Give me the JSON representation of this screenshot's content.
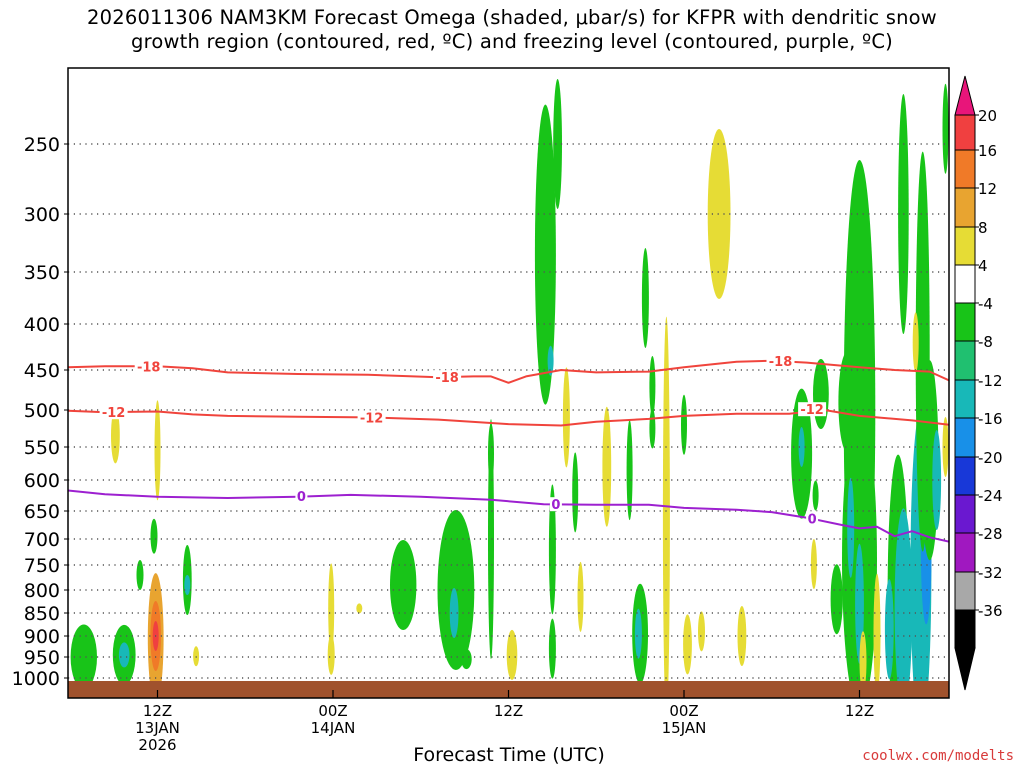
{
  "title": {
    "line1": "2026011306 NAM3KM Forecast Omega (shaded, μbar/s) for KFPR with dendritic snow",
    "line2": "growth region (contoured, red, ºC) and freezing level (contoured, purple, ºC)"
  },
  "credit": "coolwx.com/modelts",
  "chart_data": {
    "type": "heatmap",
    "xlabel": "Forecast Time (UTC)",
    "x_range_hours": [
      6.9,
      57.1
    ],
    "y_range_hPa": [
      1030,
      200
    ],
    "y_ticks": [
      250,
      300,
      350,
      400,
      450,
      500,
      550,
      600,
      650,
      700,
      750,
      800,
      850,
      900,
      950,
      1000
    ],
    "x_ticks": [
      {
        "hour": 12,
        "labels": [
          "12Z",
          "13JAN",
          "2026"
        ]
      },
      {
        "hour": 22,
        "labels": [
          "00Z",
          "14JAN"
        ]
      },
      {
        "hour": 32,
        "labels": [
          "12Z"
        ]
      },
      {
        "hour": 42,
        "labels": [
          "00Z",
          "15JAN"
        ]
      },
      {
        "hour": 52,
        "labels": [
          "12Z"
        ]
      }
    ],
    "colorbar": {
      "labels": [
        "20",
        "16",
        "12",
        "8",
        "4",
        "-4",
        "-8",
        "-12",
        "-16",
        "-20",
        "-24",
        "-28",
        "-32",
        "-36"
      ],
      "bins": [
        {
          "range": "> 20",
          "color": "#e8157a"
        },
        {
          "range": "16 to 20",
          "color": "#f04040"
        },
        {
          "range": "12 to 16",
          "color": "#f07a28"
        },
        {
          "range": "8 to 12",
          "color": "#e8a430"
        },
        {
          "range": "4 to 8",
          "color": "#e6dc35"
        },
        {
          "range": "-4 to 4",
          "color": "#ffffff"
        },
        {
          "range": "-8 to -4",
          "color": "#18c418"
        },
        {
          "range": "-12 to -8",
          "color": "#20c070"
        },
        {
          "range": "-16 to -12",
          "color": "#18b8b8"
        },
        {
          "range": "-20 to -16",
          "color": "#1890e8"
        },
        {
          "range": "-24 to -20",
          "color": "#1838d8"
        },
        {
          "range": "-28 to -24",
          "color": "#6a18d0"
        },
        {
          "range": "-32 to -28",
          "color": "#a018c0"
        },
        {
          "range": "-36 to -32",
          "color": "#a8a8a8"
        },
        {
          "range": "< -36",
          "color": "#000000"
        }
      ]
    },
    "contours": [
      {
        "value": -18,
        "label": "-18",
        "color": "#f0443c",
        "points": [
          [
            6.9,
            447
          ],
          [
            9,
            446
          ],
          [
            12,
            446
          ],
          [
            14,
            448
          ],
          [
            16,
            453
          ],
          [
            20,
            455
          ],
          [
            24,
            456
          ],
          [
            28,
            459
          ],
          [
            30,
            458
          ],
          [
            31,
            458
          ],
          [
            32,
            466
          ],
          [
            33,
            458
          ],
          [
            35,
            450
          ],
          [
            37,
            453
          ],
          [
            40,
            452
          ],
          [
            42,
            447
          ],
          [
            45,
            441
          ],
          [
            47,
            440
          ],
          [
            49,
            442
          ],
          [
            52,
            447
          ],
          [
            54,
            450
          ],
          [
            56,
            452
          ],
          [
            57.1,
            463
          ]
        ],
        "labels_at": [
          [
            11.5,
            446
          ],
          [
            28.5,
            459
          ],
          [
            47.5,
            440
          ]
        ]
      },
      {
        "value": -12,
        "label": "-12",
        "color": "#f0443c",
        "points": [
          [
            6.9,
            501
          ],
          [
            9,
            503
          ],
          [
            12,
            502
          ],
          [
            14,
            506
          ],
          [
            16,
            508
          ],
          [
            20,
            509
          ],
          [
            24,
            510
          ],
          [
            28,
            513
          ],
          [
            32,
            519
          ],
          [
            35,
            521
          ],
          [
            37,
            516
          ],
          [
            40,
            512
          ],
          [
            42,
            508
          ],
          [
            45,
            505
          ],
          [
            48,
            505
          ],
          [
            50,
            500
          ],
          [
            52,
            508
          ],
          [
            55,
            514
          ],
          [
            57.1,
            520
          ]
        ],
        "labels_at": [
          [
            9.5,
            503
          ],
          [
            24.2,
            510
          ],
          [
            49.3,
            499
          ]
        ]
      },
      {
        "value": 0,
        "label": "0",
        "color": "#9d20d0",
        "points": [
          [
            6.9,
            617
          ],
          [
            9,
            623
          ],
          [
            12,
            627
          ],
          [
            16,
            629
          ],
          [
            20,
            627
          ],
          [
            23,
            624
          ],
          [
            27,
            627
          ],
          [
            31,
            632
          ],
          [
            34,
            639
          ],
          [
            37,
            640
          ],
          [
            40,
            640
          ],
          [
            42,
            645
          ],
          [
            45,
            648
          ],
          [
            47,
            652
          ],
          [
            49,
            662
          ],
          [
            51,
            675
          ],
          [
            52,
            681
          ],
          [
            53,
            678
          ],
          [
            54,
            695
          ],
          [
            55,
            686
          ],
          [
            56,
            697
          ],
          [
            57.1,
            705
          ]
        ],
        "labels_at": [
          [
            20.2,
            626
          ],
          [
            34.7,
            639
          ],
          [
            49.3,
            663
          ]
        ]
      }
    ],
    "omega_features": [
      {
        "x": 7.8,
        "p": 950,
        "w": 1.5,
        "h": 65,
        "value": -6
      },
      {
        "x": 10.1,
        "p": 945,
        "w": 1.3,
        "h": 60,
        "value": -7
      },
      {
        "x": 10.1,
        "p": 945,
        "w": 0.6,
        "h": 25,
        "value": -13
      },
      {
        "x": 11.9,
        "p": 905,
        "w": 0.9,
        "h": 130,
        "value": 8
      },
      {
        "x": 11.9,
        "p": 900,
        "w": 0.6,
        "h": 70,
        "value": 13
      },
      {
        "x": 11.9,
        "p": 900,
        "w": 0.3,
        "h": 30,
        "value": 17
      },
      {
        "x": 11.8,
        "p": 695,
        "w": 0.4,
        "h": 35,
        "value": -6
      },
      {
        "x": 11.0,
        "p": 770,
        "w": 0.4,
        "h": 30,
        "value": -6
      },
      {
        "x": 13.7,
        "p": 780,
        "w": 0.5,
        "h": 70,
        "value": -6
      },
      {
        "x": 13.7,
        "p": 790,
        "w": 0.2,
        "h": 20,
        "value": -13
      },
      {
        "x": 9.6,
        "p": 535,
        "w": 0.5,
        "h": 55,
        "value": 5
      },
      {
        "x": 12.0,
        "p": 555,
        "w": 0.2,
        "h": 100,
        "value": 5
      },
      {
        "x": 14.2,
        "p": 948,
        "w": 0.3,
        "h": 20,
        "value": 5
      },
      {
        "x": 21.9,
        "p": 840,
        "w": 0.3,
        "h": 90,
        "value": 5
      },
      {
        "x": 21.9,
        "p": 945,
        "w": 0.4,
        "h": 40,
        "value": 5
      },
      {
        "x": 23.5,
        "p": 840,
        "w": 0.1,
        "h": 10,
        "value": 5
      },
      {
        "x": 26.0,
        "p": 790,
        "w": 1.5,
        "h": 90,
        "value": -6
      },
      {
        "x": 29.0,
        "p": 800,
        "w": 2.1,
        "h": 160,
        "value": -6
      },
      {
        "x": 28.9,
        "p": 850,
        "w": 0.5,
        "h": 50,
        "value": -13
      },
      {
        "x": 31.0,
        "p": 700,
        "w": 0.3,
        "h": 240,
        "value": -6
      },
      {
        "x": 31.0,
        "p": 560,
        "w": 0.2,
        "h": 60,
        "value": -6
      },
      {
        "x": 29.6,
        "p": 955,
        "w": 0.6,
        "h": 20,
        "value": -6
      },
      {
        "x": 32.2,
        "p": 945,
        "w": 0.6,
        "h": 50,
        "value": 5
      },
      {
        "x": 34.1,
        "p": 335,
        "w": 1.2,
        "h": 300,
        "value": -6
      },
      {
        "x": 34.8,
        "p": 250,
        "w": 0.5,
        "h": 130,
        "value": -6
      },
      {
        "x": 34.4,
        "p": 440,
        "w": 0.2,
        "h": 30,
        "value": -13
      },
      {
        "x": 35.3,
        "p": 510,
        "w": 0.4,
        "h": 100,
        "value": 5
      },
      {
        "x": 34.5,
        "p": 720,
        "w": 0.4,
        "h": 130,
        "value": -6
      },
      {
        "x": 34.5,
        "p": 930,
        "w": 0.4,
        "h": 60,
        "value": -6
      },
      {
        "x": 35.8,
        "p": 620,
        "w": 0.3,
        "h": 80,
        "value": -6
      },
      {
        "x": 36.1,
        "p": 815,
        "w": 0.3,
        "h": 70,
        "value": 5
      },
      {
        "x": 37.6,
        "p": 580,
        "w": 0.5,
        "h": 120,
        "value": 5
      },
      {
        "x": 38.9,
        "p": 585,
        "w": 0.3,
        "h": 100,
        "value": -6
      },
      {
        "x": 39.8,
        "p": 375,
        "w": 0.4,
        "h": 100,
        "value": -6
      },
      {
        "x": 40.2,
        "p": 470,
        "w": 0.2,
        "h": 60,
        "value": -6
      },
      {
        "x": 40.2,
        "p": 525,
        "w": 0.3,
        "h": 40,
        "value": -6
      },
      {
        "x": 39.5,
        "p": 895,
        "w": 0.9,
        "h": 100,
        "value": -6
      },
      {
        "x": 39.4,
        "p": 895,
        "w": 0.4,
        "h": 50,
        "value": -13
      },
      {
        "x": 41.0,
        "p": 660,
        "w": 0.4,
        "h": 400,
        "value": 5
      },
      {
        "x": 42.0,
        "p": 520,
        "w": 0.3,
        "h": 60,
        "value": -6
      },
      {
        "x": 42.2,
        "p": 920,
        "w": 0.5,
        "h": 60,
        "value": 5
      },
      {
        "x": 44.0,
        "p": 300,
        "w": 1.3,
        "h": 170,
        "value": 5
      },
      {
        "x": 43.0,
        "p": 890,
        "w": 0.4,
        "h": 40,
        "value": 5
      },
      {
        "x": 45.3,
        "p": 900,
        "w": 0.5,
        "h": 60,
        "value": 5
      },
      {
        "x": 48.7,
        "p": 560,
        "w": 1.2,
        "h": 130,
        "value": -6
      },
      {
        "x": 48.7,
        "p": 550,
        "w": 0.3,
        "h": 40,
        "value": -13
      },
      {
        "x": 49.8,
        "p": 480,
        "w": 0.9,
        "h": 70,
        "value": -6
      },
      {
        "x": 49.5,
        "p": 625,
        "w": 0.3,
        "h": 30,
        "value": -6
      },
      {
        "x": 49.4,
        "p": 748,
        "w": 0.2,
        "h": 50,
        "value": 5
      },
      {
        "x": 52.0,
        "p": 500,
        "w": 1.8,
        "h": 500,
        "value": -6
      },
      {
        "x": 51.3,
        "p": 490,
        "w": 1.0,
        "h": 100,
        "value": -6
      },
      {
        "x": 52.0,
        "p": 740,
        "w": 2.0,
        "h": 300,
        "value": -6
      },
      {
        "x": 51.5,
        "p": 680,
        "w": 0.4,
        "h": 100,
        "value": -13
      },
      {
        "x": 52.0,
        "p": 830,
        "w": 0.5,
        "h": 120,
        "value": -13
      },
      {
        "x": 50.7,
        "p": 820,
        "w": 0.7,
        "h": 70,
        "value": -6
      },
      {
        "x": 52.2,
        "p": 960,
        "w": 0.4,
        "h": 60,
        "value": 5
      },
      {
        "x": 53.0,
        "p": 895,
        "w": 0.4,
        "h": 120,
        "value": 5
      },
      {
        "x": 54.5,
        "p": 300,
        "w": 0.6,
        "h": 240,
        "value": -6
      },
      {
        "x": 54.2,
        "p": 810,
        "w": 1.2,
        "h": 280,
        "value": -6
      },
      {
        "x": 54.5,
        "p": 840,
        "w": 1.0,
        "h": 200,
        "value": -13
      },
      {
        "x": 53.7,
        "p": 885,
        "w": 0.5,
        "h": 100,
        "value": -13
      },
      {
        "x": 55.5,
        "p": 760,
        "w": 1.2,
        "h": 320,
        "value": -13
      },
      {
        "x": 55.8,
        "p": 720,
        "w": 0.6,
        "h": 150,
        "value": -17
      },
      {
        "x": 55.6,
        "p": 430,
        "w": 0.8,
        "h": 400,
        "value": -6
      },
      {
        "x": 56.0,
        "p": 570,
        "w": 1.0,
        "h": 200,
        "value": -6
      },
      {
        "x": 56.4,
        "p": 600,
        "w": 0.5,
        "h": 100,
        "value": -13
      },
      {
        "x": 55.2,
        "p": 420,
        "w": 0.2,
        "h": 60,
        "value": 5
      },
      {
        "x": 56.9,
        "p": 240,
        "w": 0.2,
        "h": 90,
        "value": -6
      },
      {
        "x": 56.9,
        "p": 550,
        "w": 0.2,
        "h": 60,
        "value": 5
      }
    ]
  }
}
